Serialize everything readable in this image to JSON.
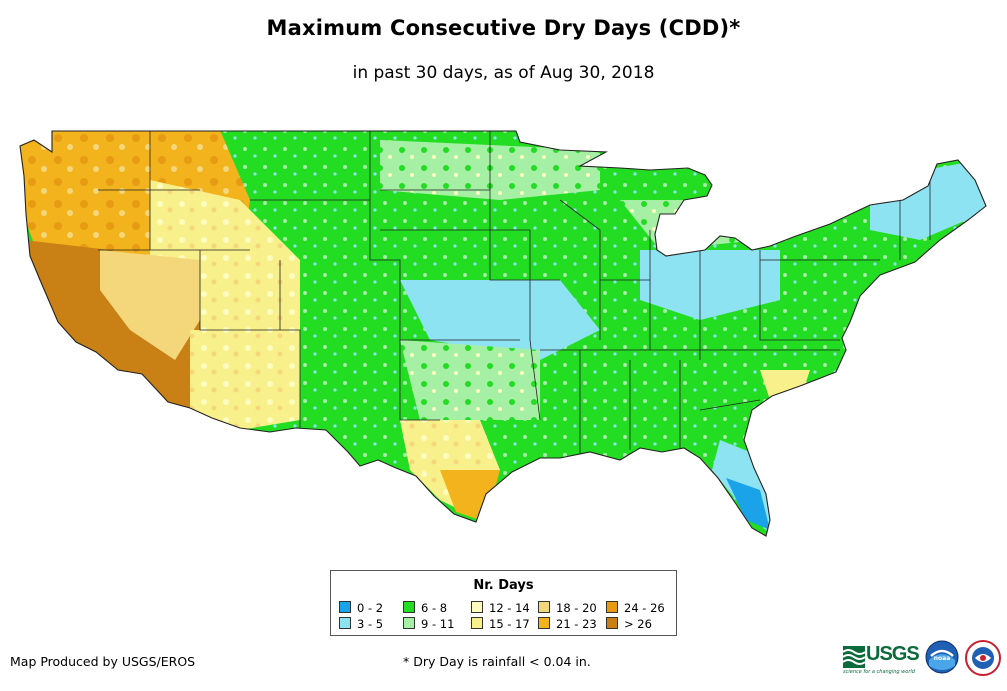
{
  "title": "Maximum Consecutive Dry Days (CDD)*",
  "subtitle": "in past 30 days, as of Aug 30, 2018",
  "legend": {
    "title": "Nr. Days",
    "items": [
      {
        "label": "0 - 2",
        "color": "#1aa3e8"
      },
      {
        "label": "3 - 5",
        "color": "#8ee3f2"
      },
      {
        "label": "6 - 8",
        "color": "#22dd22"
      },
      {
        "label": "9 - 11",
        "color": "#a6f0a6"
      },
      {
        "label": "12 - 14",
        "color": "#fdfdc0"
      },
      {
        "label": "15 - 17",
        "color": "#f8f08a"
      },
      {
        "label": "18 - 20",
        "color": "#f4d77a"
      },
      {
        "label": "21 - 23",
        "color": "#f2b31c"
      },
      {
        "label": "24 - 26",
        "color": "#e69b12"
      },
      {
        "label": "> 26",
        "color": "#c98014"
      }
    ]
  },
  "footer": {
    "credit": "Map Produced by USGS/EROS",
    "footnote": "* Dry Day is rainfall < 0.04 in.",
    "usgs_label": "USGS",
    "usgs_tagline": "science for a changing world",
    "noaa_label": "noaa"
  }
}
